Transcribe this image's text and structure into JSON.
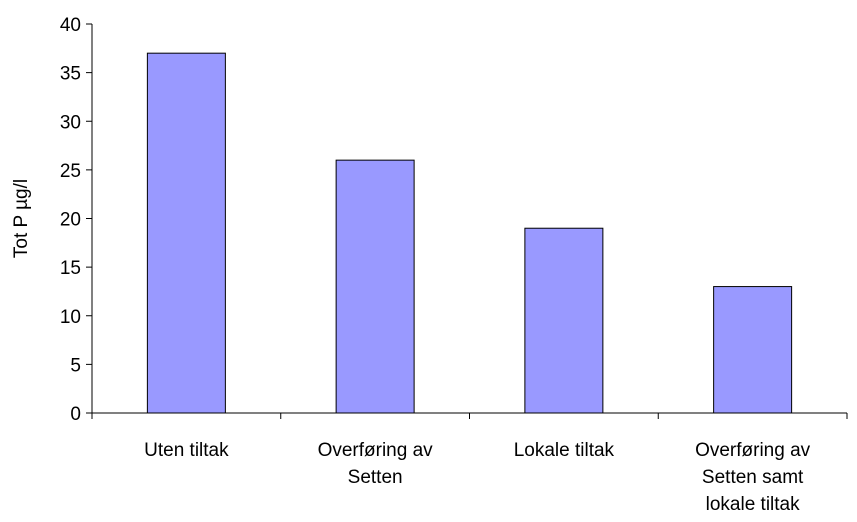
{
  "chart_data": {
    "type": "bar",
    "title": "",
    "xlabel": "",
    "ylabel": "Tot P µg/l",
    "categories": [
      [
        "Uten tiltak"
      ],
      [
        "Overføring av",
        "Setten"
      ],
      [
        "Lokale tiltak"
      ],
      [
        "Overføring av",
        "Setten samt",
        "lokale tiltak"
      ]
    ],
    "values": [
      37,
      26,
      19,
      13
    ],
    "ylim": [
      0,
      40
    ],
    "yticks": [
      0,
      5,
      10,
      15,
      20,
      25,
      30,
      35,
      40
    ],
    "grid": false,
    "legend": "none",
    "bar_color": "#9999ff",
    "bar_edge_color": "#000000"
  }
}
